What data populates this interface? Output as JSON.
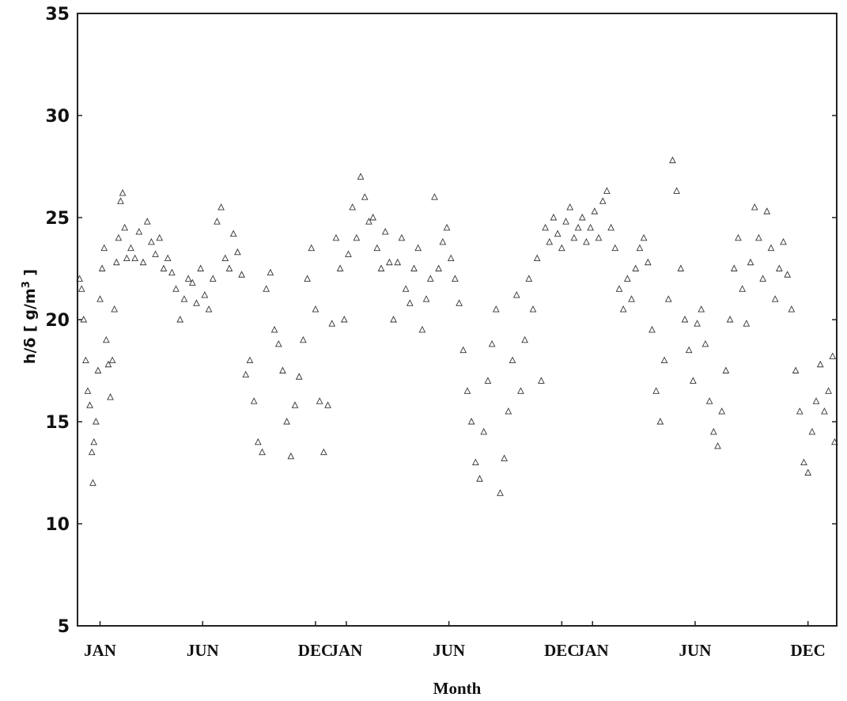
{
  "chart_data": {
    "type": "scatter",
    "title": "",
    "xlabel": "Month",
    "ylabel": "h/δ [ g/m³ ]",
    "ylabel_parts": {
      "main": "h/δ [ g/m",
      "sup": "3",
      "tail": " ]"
    },
    "ylim": [
      5,
      35
    ],
    "yticks": [
      5,
      10,
      15,
      20,
      25,
      30,
      35
    ],
    "ytick_labels": [
      "5",
      "10",
      "15",
      "20",
      "25",
      "30",
      "35"
    ],
    "xlim": [
      -0.6,
      36.4
    ],
    "xticks": [
      {
        "x": 0.5,
        "label": "JAN"
      },
      {
        "x": 5.5,
        "label": "JUN"
      },
      {
        "x": 11,
        "label": "DEC"
      },
      {
        "x": 12.5,
        "label": "JAN"
      },
      {
        "x": 17.5,
        "label": "JUN"
      },
      {
        "x": 23,
        "label": "DEC"
      },
      {
        "x": 24.5,
        "label": "JAN"
      },
      {
        "x": 29.5,
        "label": "JUN"
      },
      {
        "x": 35,
        "label": "DEC"
      }
    ],
    "marker": "open-triangle",
    "grid": false,
    "series": [
      {
        "points": [
          [
            -0.5,
            22.0
          ],
          [
            -0.4,
            21.5
          ],
          [
            -0.3,
            20.0
          ],
          [
            -0.2,
            18.0
          ],
          [
            -0.1,
            16.5
          ],
          [
            0.0,
            15.8
          ],
          [
            0.1,
            13.5
          ],
          [
            0.15,
            12.0
          ],
          [
            0.2,
            14.0
          ],
          [
            0.3,
            15.0
          ],
          [
            0.4,
            17.5
          ],
          [
            0.5,
            21.0
          ],
          [
            0.6,
            22.5
          ],
          [
            0.7,
            23.5
          ],
          [
            0.8,
            19.0
          ],
          [
            0.9,
            17.8
          ],
          [
            1.0,
            16.2
          ],
          [
            1.1,
            18.0
          ],
          [
            1.2,
            20.5
          ],
          [
            1.3,
            22.8
          ],
          [
            1.4,
            24.0
          ],
          [
            1.5,
            25.8
          ],
          [
            1.6,
            26.2
          ],
          [
            1.7,
            24.5
          ],
          [
            1.8,
            23.0
          ],
          [
            2.0,
            23.5
          ],
          [
            2.2,
            23.0
          ],
          [
            2.4,
            24.3
          ],
          [
            2.6,
            22.8
          ],
          [
            2.8,
            24.8
          ],
          [
            3.0,
            23.8
          ],
          [
            3.2,
            23.2
          ],
          [
            3.4,
            24.0
          ],
          [
            3.6,
            22.5
          ],
          [
            3.8,
            23.0
          ],
          [
            4.0,
            22.3
          ],
          [
            4.2,
            21.5
          ],
          [
            4.4,
            20.0
          ],
          [
            4.6,
            21.0
          ],
          [
            4.8,
            22.0
          ],
          [
            5.0,
            21.8
          ],
          [
            5.2,
            20.8
          ],
          [
            5.4,
            22.5
          ],
          [
            5.6,
            21.2
          ],
          [
            5.8,
            20.5
          ],
          [
            6.0,
            22.0
          ],
          [
            6.2,
            24.8
          ],
          [
            6.4,
            25.5
          ],
          [
            6.6,
            23.0
          ],
          [
            6.8,
            22.5
          ],
          [
            7.0,
            24.2
          ],
          [
            7.2,
            23.3
          ],
          [
            7.4,
            22.2
          ],
          [
            7.6,
            17.3
          ],
          [
            7.8,
            18.0
          ],
          [
            8.0,
            16.0
          ],
          [
            8.2,
            14.0
          ],
          [
            8.4,
            13.5
          ],
          [
            8.6,
            21.5
          ],
          [
            8.8,
            22.3
          ],
          [
            9.0,
            19.5
          ],
          [
            9.2,
            18.8
          ],
          [
            9.4,
            17.5
          ],
          [
            9.6,
            15.0
          ],
          [
            9.8,
            13.3
          ],
          [
            10.0,
            15.8
          ],
          [
            10.2,
            17.2
          ],
          [
            10.4,
            19.0
          ],
          [
            10.6,
            22.0
          ],
          [
            10.8,
            23.5
          ],
          [
            11.0,
            20.5
          ],
          [
            11.2,
            16.0
          ],
          [
            11.4,
            13.5
          ],
          [
            11.6,
            15.8
          ],
          [
            11.8,
            19.8
          ],
          [
            12.0,
            24.0
          ],
          [
            12.2,
            22.5
          ],
          [
            12.4,
            20.0
          ],
          [
            12.6,
            23.2
          ],
          [
            12.8,
            25.5
          ],
          [
            13.0,
            24.0
          ],
          [
            13.2,
            27.0
          ],
          [
            13.4,
            26.0
          ],
          [
            13.6,
            24.8
          ],
          [
            13.8,
            25.0
          ],
          [
            14.0,
            23.5
          ],
          [
            14.2,
            22.5
          ],
          [
            14.4,
            24.3
          ],
          [
            14.6,
            22.8
          ],
          [
            14.8,
            20.0
          ],
          [
            15.0,
            22.8
          ],
          [
            15.2,
            24.0
          ],
          [
            15.4,
            21.5
          ],
          [
            15.6,
            20.8
          ],
          [
            15.8,
            22.5
          ],
          [
            16.0,
            23.5
          ],
          [
            16.2,
            19.5
          ],
          [
            16.4,
            21.0
          ],
          [
            16.6,
            22.0
          ],
          [
            16.8,
            26.0
          ],
          [
            17.0,
            22.5
          ],
          [
            17.2,
            23.8
          ],
          [
            17.4,
            24.5
          ],
          [
            17.6,
            23.0
          ],
          [
            17.8,
            22.0
          ],
          [
            18.0,
            20.8
          ],
          [
            18.2,
            18.5
          ],
          [
            18.4,
            16.5
          ],
          [
            18.6,
            15.0
          ],
          [
            18.8,
            13.0
          ],
          [
            19.0,
            12.2
          ],
          [
            19.2,
            14.5
          ],
          [
            19.4,
            17.0
          ],
          [
            19.6,
            18.8
          ],
          [
            19.8,
            20.5
          ],
          [
            20.0,
            11.5
          ],
          [
            20.2,
            13.2
          ],
          [
            20.4,
            15.5
          ],
          [
            20.6,
            18.0
          ],
          [
            20.8,
            21.2
          ],
          [
            21.0,
            16.5
          ],
          [
            21.2,
            19.0
          ],
          [
            21.4,
            22.0
          ],
          [
            21.6,
            20.5
          ],
          [
            21.8,
            23.0
          ],
          [
            22.0,
            17.0
          ],
          [
            22.2,
            24.5
          ],
          [
            22.4,
            23.8
          ],
          [
            22.6,
            25.0
          ],
          [
            22.8,
            24.2
          ],
          [
            23.0,
            23.5
          ],
          [
            23.2,
            24.8
          ],
          [
            23.4,
            25.5
          ],
          [
            23.6,
            24.0
          ],
          [
            23.8,
            24.5
          ],
          [
            24.0,
            25.0
          ],
          [
            24.2,
            23.8
          ],
          [
            24.4,
            24.5
          ],
          [
            24.6,
            25.3
          ],
          [
            24.8,
            24.0
          ],
          [
            25.0,
            25.8
          ],
          [
            25.2,
            26.3
          ],
          [
            25.4,
            24.5
          ],
          [
            25.6,
            23.5
          ],
          [
            25.8,
            21.5
          ],
          [
            26.0,
            20.5
          ],
          [
            26.2,
            22.0
          ],
          [
            26.4,
            21.0
          ],
          [
            26.6,
            22.5
          ],
          [
            26.8,
            23.5
          ],
          [
            27.0,
            24.0
          ],
          [
            27.2,
            22.8
          ],
          [
            27.4,
            19.5
          ],
          [
            27.6,
            16.5
          ],
          [
            27.8,
            15.0
          ],
          [
            28.0,
            18.0
          ],
          [
            28.2,
            21.0
          ],
          [
            28.4,
            27.8
          ],
          [
            28.6,
            26.3
          ],
          [
            28.8,
            22.5
          ],
          [
            29.0,
            20.0
          ],
          [
            29.2,
            18.5
          ],
          [
            29.4,
            17.0
          ],
          [
            29.6,
            19.8
          ],
          [
            29.8,
            20.5
          ],
          [
            30.0,
            18.8
          ],
          [
            30.2,
            16.0
          ],
          [
            30.4,
            14.5
          ],
          [
            30.6,
            13.8
          ],
          [
            30.8,
            15.5
          ],
          [
            31.0,
            17.5
          ],
          [
            31.2,
            20.0
          ],
          [
            31.4,
            22.5
          ],
          [
            31.6,
            24.0
          ],
          [
            31.8,
            21.5
          ],
          [
            32.0,
            19.8
          ],
          [
            32.2,
            22.8
          ],
          [
            32.4,
            25.5
          ],
          [
            32.6,
            24.0
          ],
          [
            32.8,
            22.0
          ],
          [
            33.0,
            25.3
          ],
          [
            33.2,
            23.5
          ],
          [
            33.4,
            21.0
          ],
          [
            33.6,
            22.5
          ],
          [
            33.8,
            23.8
          ],
          [
            34.0,
            22.2
          ],
          [
            34.2,
            20.5
          ],
          [
            34.4,
            17.5
          ],
          [
            34.6,
            15.5
          ],
          [
            34.8,
            13.0
          ],
          [
            35.0,
            12.5
          ],
          [
            35.2,
            14.5
          ],
          [
            35.4,
            16.0
          ],
          [
            35.6,
            17.8
          ],
          [
            35.8,
            15.5
          ],
          [
            36.0,
            16.5
          ],
          [
            36.2,
            18.2
          ],
          [
            36.3,
            14.0
          ]
        ]
      }
    ]
  }
}
